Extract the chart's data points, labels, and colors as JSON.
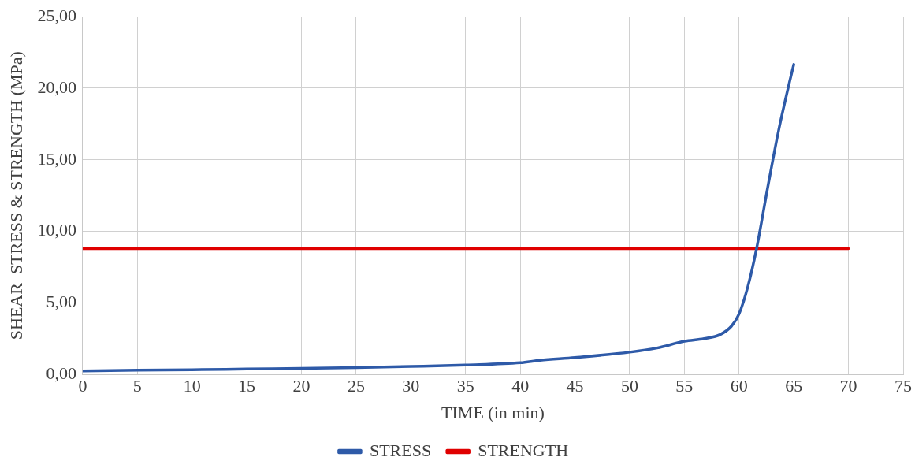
{
  "chart_data": {
    "type": "line",
    "xlabel": "TIME (in min)",
    "ylabel": "SHEAR  STRESS & STRENGTH (MPa)",
    "xlim": [
      0,
      75
    ],
    "xticks": [
      0,
      5,
      10,
      15,
      20,
      25,
      30,
      35,
      40,
      45,
      50,
      55,
      60,
      65,
      70,
      75
    ],
    "ylim": [
      0,
      25
    ],
    "yticks": [
      {
        "value": 0,
        "label": "0,00"
      },
      {
        "value": 5,
        "label": "5,00"
      },
      {
        "value": 10,
        "label": "10,00"
      },
      {
        "value": 15,
        "label": "15,00"
      },
      {
        "value": 20,
        "label": "20,00"
      },
      {
        "value": 25,
        "label": "25,00"
      }
    ],
    "grid": true,
    "legend": "bottom",
    "marker": "none",
    "line_style": "solid",
    "series": [
      {
        "name": "STRESS",
        "color": "#2e5aa8",
        "x": [
          0,
          5,
          10,
          15,
          20,
          25,
          30,
          35,
          40,
          41.8,
          45,
          50,
          52.5,
          55,
          56.8,
          58.3,
          59.3,
          60,
          60.8,
          61.6,
          62.6,
          63.6,
          64.6,
          65
        ],
        "values": [
          0.25,
          0.3,
          0.33,
          0.38,
          0.42,
          0.48,
          0.56,
          0.66,
          0.82,
          0.99,
          1.18,
          1.56,
          1.85,
          2.32,
          2.5,
          2.8,
          3.37,
          4.23,
          6.13,
          8.8,
          13.0,
          17.0,
          20.4,
          21.66
        ]
      },
      {
        "name": "STRENGTH",
        "color": "#e00000",
        "x": [
          0,
          70
        ],
        "values": [
          8.8,
          8.8
        ]
      }
    ]
  }
}
